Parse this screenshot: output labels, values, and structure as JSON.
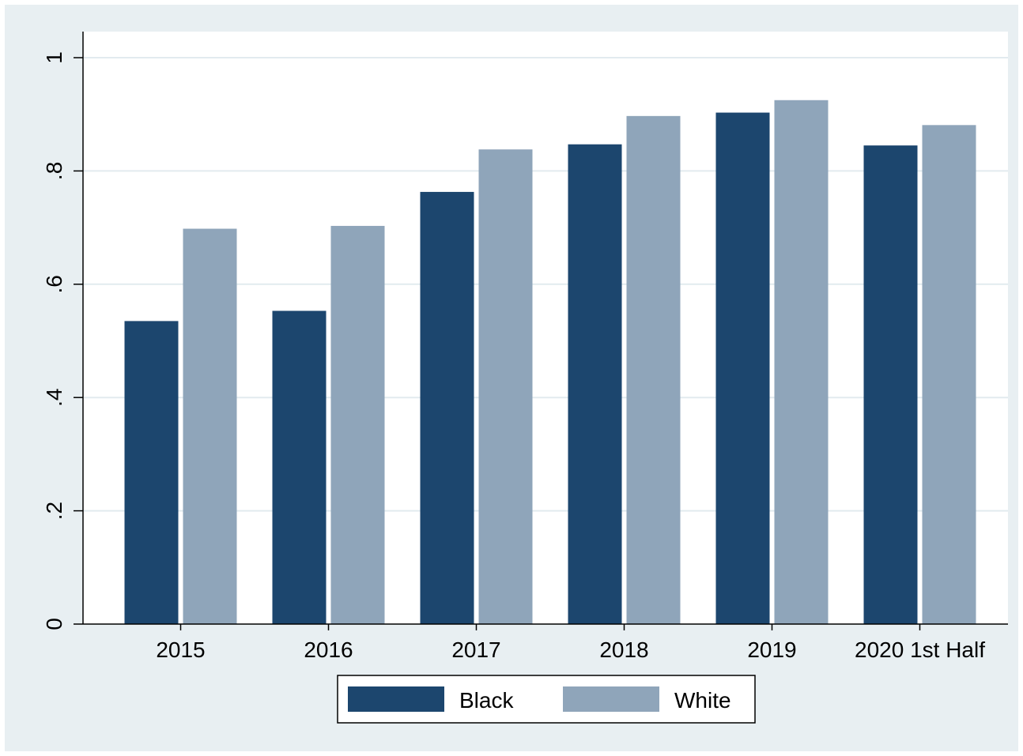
{
  "chart_data": {
    "type": "bar",
    "title": "",
    "xlabel": "",
    "ylabel": "",
    "categories": [
      "2015",
      "2016",
      "2017",
      "2018",
      "2019",
      "2020 1st Half"
    ],
    "series": [
      {
        "name": "Black",
        "color": "#1c466e",
        "values": [
          0.535,
          0.553,
          0.763,
          0.847,
          0.903,
          0.845
        ]
      },
      {
        "name": "White",
        "color": "#8fa5ba",
        "values": [
          0.698,
          0.703,
          0.838,
          0.897,
          0.925,
          0.881
        ]
      }
    ],
    "ylim": [
      0,
      1.0
    ],
    "yticks": [
      {
        "value": 0,
        "label": "0"
      },
      {
        "value": 0.2,
        "label": ".2"
      },
      {
        "value": 0.4,
        "label": ".4"
      },
      {
        "value": 0.6,
        "label": ".6"
      },
      {
        "value": 0.8,
        "label": ".8"
      },
      {
        "value": 1.0,
        "label": "1"
      }
    ],
    "grid": true,
    "legend_position": "bottom",
    "colors": {
      "outer_background": "#e8eff2",
      "plot_background": "#ffffff",
      "gridline": "#e2ebef"
    }
  }
}
